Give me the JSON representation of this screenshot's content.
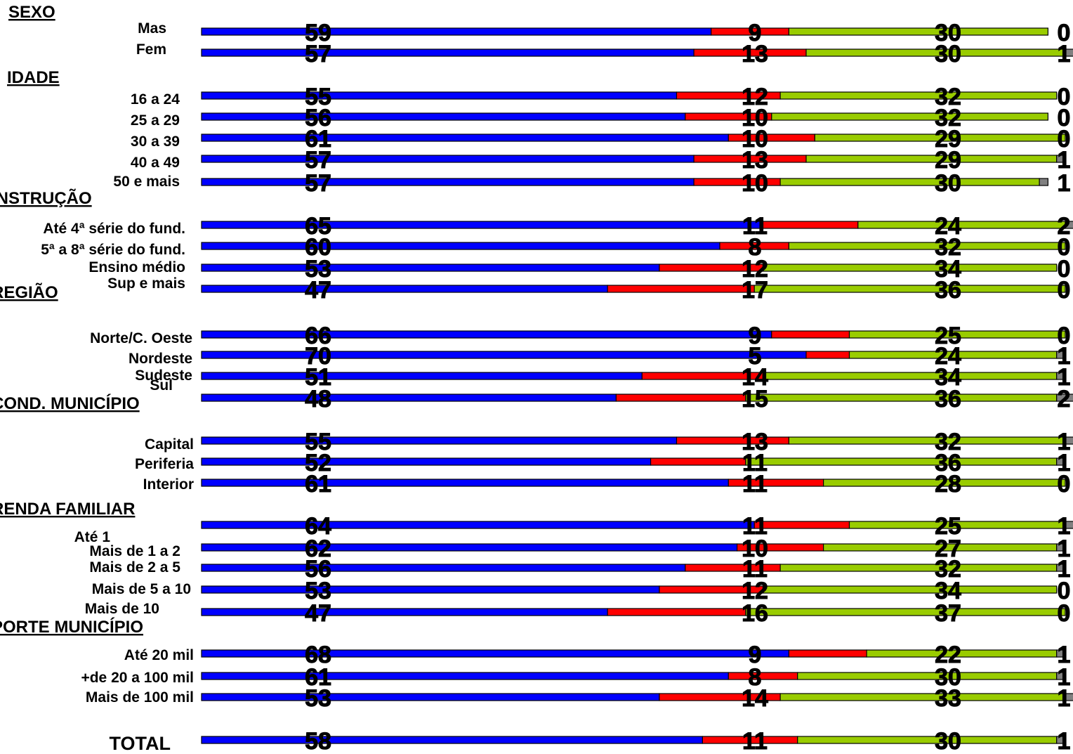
{
  "chart_data": {
    "type": "bar",
    "stacked": true,
    "orientation": "horizontal",
    "colors": [
      "#0000ff",
      "#ff0000",
      "#99cc00",
      "#808080"
    ],
    "groups": [
      {
        "title": "SEXO",
        "rows": [
          {
            "label": "Mas",
            "values": [
              59,
              9,
              30,
              0
            ]
          },
          {
            "label": "Fem",
            "values": [
              57,
              13,
              30,
              1
            ]
          }
        ]
      },
      {
        "title": "IDADE",
        "rows": [
          {
            "label": "16 a 24",
            "values": [
              55,
              12,
              32,
              0
            ]
          },
          {
            "label": "25 a 29",
            "values": [
              56,
              10,
              32,
              0
            ]
          },
          {
            "label": "30 a 39",
            "values": [
              61,
              10,
              29,
              0
            ]
          },
          {
            "label": "40 a 49",
            "values": [
              57,
              13,
              29,
              1
            ]
          },
          {
            "label": "50 e mais",
            "values": [
              57,
              10,
              30,
              1
            ]
          }
        ]
      },
      {
        "title": "INSTRUÇÃO",
        "rows": [
          {
            "label": "Até 4ª série do fund.",
            "values": [
              65,
              11,
              24,
              2
            ]
          },
          {
            "label": "5ª a 8ª série do fund.",
            "values": [
              60,
              8,
              32,
              0
            ]
          },
          {
            "label": "Ensino médio",
            "values": [
              53,
              12,
              34,
              0
            ]
          },
          {
            "label": "Sup e mais",
            "values": [
              47,
              17,
              36,
              0
            ]
          }
        ]
      },
      {
        "title": "REGIÃO",
        "rows": [
          {
            "label": "Norte/C. Oeste",
            "values": [
              66,
              9,
              25,
              0
            ]
          },
          {
            "label": "Nordeste",
            "values": [
              70,
              5,
              24,
              1
            ]
          },
          {
            "label": "Sudeste",
            "values": [
              51,
              14,
              34,
              1
            ]
          },
          {
            "label": "Sul",
            "values": [
              48,
              15,
              36,
              2
            ]
          }
        ]
      },
      {
        "title": "COND. MUNICÍPIO",
        "rows": [
          {
            "label": "Capital",
            "values": [
              55,
              13,
              32,
              1
            ]
          },
          {
            "label": "Periferia",
            "values": [
              52,
              11,
              36,
              1
            ]
          },
          {
            "label": "Interior",
            "values": [
              61,
              11,
              28,
              0
            ]
          }
        ]
      },
      {
        "title": "RENDA FAMILIAR",
        "rows": [
          {
            "label": "Até 1",
            "values": [
              64,
              11,
              25,
              1
            ]
          },
          {
            "label": "Mais de 1 a 2",
            "values": [
              62,
              10,
              27,
              1
            ]
          },
          {
            "label": "Mais de 2 a 5",
            "values": [
              56,
              11,
              32,
              1
            ]
          },
          {
            "label": "Mais de 5 a 10",
            "values": [
              53,
              12,
              34,
              0
            ]
          },
          {
            "label": "Mais de 10",
            "values": [
              47,
              16,
              37,
              0
            ]
          }
        ]
      },
      {
        "title": "PORTE MUNICÍPIO",
        "rows": [
          {
            "label": "Até 20 mil",
            "values": [
              68,
              9,
              22,
              1
            ]
          },
          {
            "label": "+de 20 a 100 mil",
            "values": [
              61,
              8,
              30,
              1
            ]
          },
          {
            "label": "Mais de 100 mil",
            "values": [
              53,
              14,
              33,
              1
            ]
          }
        ]
      },
      {
        "title": "",
        "rows": [
          {
            "label": "TOTAL",
            "values": [
              58,
              11,
              30,
              1
            ]
          }
        ]
      }
    ]
  }
}
